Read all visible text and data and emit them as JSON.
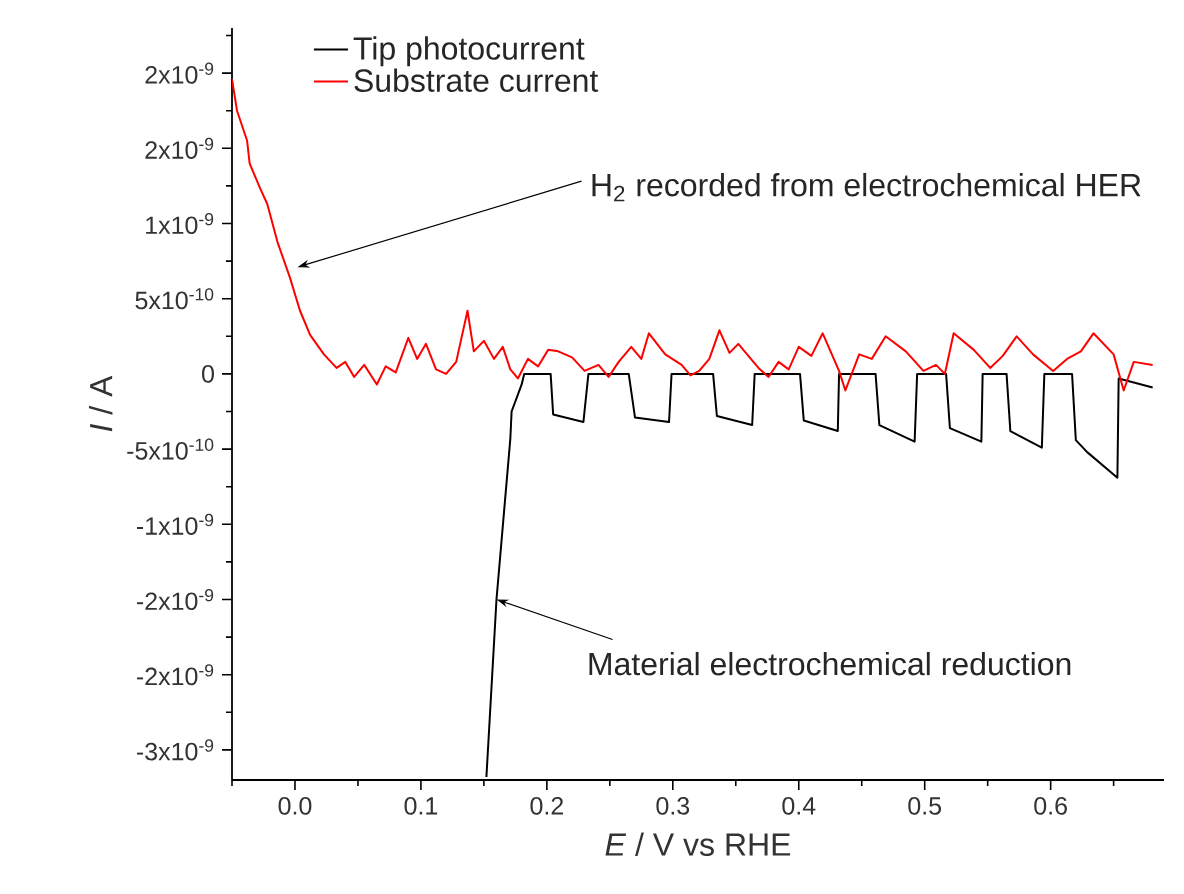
{
  "chart_data": {
    "type": "line",
    "xlabel": "*E* / V vs RHE",
    "ylabel": "*I* / A",
    "xlim": [
      -0.05,
      0.69
    ],
    "ylim": [
      -2.7e-09,
      2.3e-09
    ],
    "xticks": [
      {
        "value": -0.05,
        "label": null
      },
      {
        "value": 0.0,
        "label": "0.0"
      },
      {
        "value": 0.05,
        "label": null
      },
      {
        "value": 0.1,
        "label": "0.1"
      },
      {
        "value": 0.15,
        "label": null
      },
      {
        "value": 0.2,
        "label": "0.2"
      },
      {
        "value": 0.25,
        "label": null
      },
      {
        "value": 0.3,
        "label": "0.3"
      },
      {
        "value": 0.35,
        "label": null
      },
      {
        "value": 0.4,
        "label": "0.4"
      },
      {
        "value": 0.45,
        "label": null
      },
      {
        "value": 0.5,
        "label": "0.5"
      },
      {
        "value": 0.55,
        "label": null
      },
      {
        "value": 0.6,
        "label": "0.6"
      },
      {
        "value": 0.65,
        "label": null
      }
    ],
    "yticks": [
      {
        "value": 2.25e-09,
        "label": null
      },
      {
        "value": 2e-09,
        "label": "2x10$^{-9}$"
      },
      {
        "value": 1.75e-09,
        "label": null
      },
      {
        "value": 1.5e-09,
        "label": "2x10$^{-9}$"
      },
      {
        "value": 1.25e-09,
        "label": null
      },
      {
        "value": 1e-09,
        "label": "1x10$^{-9}$"
      },
      {
        "value": 7.5e-10,
        "label": null
      },
      {
        "value": 5e-10,
        "label": "5x10$^{-10}$"
      },
      {
        "value": 2.5e-10,
        "label": null
      },
      {
        "value": 0,
        "label": "0"
      },
      {
        "value": -2.5e-10,
        "label": null
      },
      {
        "value": -5e-10,
        "label": "-5x10$^{-10}$"
      },
      {
        "value": -7.5e-10,
        "label": null
      },
      {
        "value": -1e-09,
        "label": "-1x10$^{-9}$"
      },
      {
        "value": -1.25e-09,
        "label": null
      },
      {
        "value": -1.5e-09,
        "label": "-2x10$^{-9}$"
      },
      {
        "value": -1.75e-09,
        "label": null
      },
      {
        "value": -2e-09,
        "label": "-2x10$^{-9}$"
      },
      {
        "value": -2.25e-09,
        "label": null
      },
      {
        "value": -2.5e-09,
        "label": "-3x10$^{-9}$"
      }
    ],
    "legend": "top left",
    "series": [
      {
        "name": "Tip photocurrent",
        "color": "#000000",
        "x": [
          0.152,
          0.16,
          0.171,
          0.172,
          0.18,
          0.182,
          0.203,
          0.205,
          0.229,
          0.233,
          0.265,
          0.27,
          0.297,
          0.299,
          0.332,
          0.335,
          0.363,
          0.365,
          0.401,
          0.404,
          0.431,
          0.432,
          0.461,
          0.464,
          0.492,
          0.494,
          0.517,
          0.52,
          0.545,
          0.546,
          0.565,
          0.568,
          0.593,
          0.595,
          0.617,
          0.62,
          0.629,
          0.653,
          0.654,
          0.681
        ],
        "values": [
          -2.68e-09,
          -1.5e-09,
          -4.3e-10,
          -2.5e-10,
          -7e-11,
          0,
          0,
          -2.7e-10,
          -3.2e-10,
          0,
          0,
          -2.9e-10,
          -3.2e-10,
          0,
          0,
          -2.8e-10,
          -3.4e-10,
          0,
          0,
          -3.1e-10,
          -3.8e-10,
          0,
          0,
          -3.4e-10,
          -4.5e-10,
          0,
          0,
          -3.6e-10,
          -4.5e-10,
          0,
          0,
          -3.8e-10,
          -4.9e-10,
          0,
          0,
          -4.4e-10,
          -5.2e-10,
          -6.9e-10,
          -3e-11,
          -9e-11
        ]
      },
      {
        "name": "Substrate current",
        "color": "#ff0000",
        "x": [
          -0.05,
          -0.046,
          -0.038,
          -0.036,
          -0.028,
          -0.022,
          -0.014,
          -0.004,
          0.004,
          0.012,
          0.023,
          0.033,
          0.04,
          0.047,
          0.055,
          0.065,
          0.072,
          0.08,
          0.09,
          0.097,
          0.104,
          0.112,
          0.12,
          0.128,
          0.137,
          0.142,
          0.15,
          0.158,
          0.165,
          0.171,
          0.177,
          0.185,
          0.193,
          0.201,
          0.209,
          0.22,
          0.23,
          0.241,
          0.249,
          0.257,
          0.267,
          0.275,
          0.281,
          0.294,
          0.307,
          0.314,
          0.321,
          0.329,
          0.337,
          0.345,
          0.352,
          0.368,
          0.376,
          0.384,
          0.392,
          0.4,
          0.41,
          0.419,
          0.432,
          0.437,
          0.448,
          0.458,
          0.469,
          0.485,
          0.499,
          0.509,
          0.516,
          0.523,
          0.539,
          0.552,
          0.562,
          0.573,
          0.586,
          0.602,
          0.613,
          0.624,
          0.634,
          0.65,
          0.658,
          0.666,
          0.681
        ],
        "values": [
          1.96e-09,
          1.75e-09,
          1.55e-09,
          1.4e-09,
          1.24e-09,
          1.13e-09,
          8.8e-10,
          6.4e-10,
          4.2e-10,
          2.6e-10,
          1.3e-10,
          4e-11,
          8e-11,
          -2e-11,
          6e-11,
          -7e-11,
          5e-11,
          1e-11,
          2.4e-10,
          1e-10,
          2e-10,
          3e-11,
          0,
          8e-11,
          4.2e-10,
          1.5e-10,
          2.2e-10,
          1e-10,
          1.8e-10,
          3e-11,
          -3e-11,
          1e-10,
          5e-11,
          1.6e-10,
          1.5e-10,
          1.1e-10,
          2e-11,
          6e-11,
          -2e-11,
          8e-11,
          1.8e-10,
          1e-10,
          2.7e-10,
          1.3e-10,
          6e-11,
          -1e-11,
          2e-11,
          1e-10,
          2.9e-10,
          1.4e-10,
          2e-10,
          4e-11,
          -2e-11,
          8e-11,
          3e-11,
          1.8e-10,
          1.2e-10,
          2.7e-10,
          2e-11,
          -1.1e-10,
          1.3e-10,
          1e-10,
          2.5e-10,
          1.5e-10,
          2e-11,
          6e-11,
          0,
          2.7e-10,
          1.6e-10,
          4e-11,
          1.2e-10,
          2.5e-10,
          1.3e-10,
          2e-11,
          1e-10,
          1.5e-10,
          2.7e-10,
          1.3e-10,
          -1.1e-10,
          8e-11,
          6e-11
        ]
      }
    ],
    "annotations": [
      {
        "text": "H$_{2}$ recorded from electrochemical HER",
        "x": 0.002,
        "y": 7.1e-10
      },
      {
        "text": "Material electrochemical reduction",
        "x": 0.16,
        "y": -1.5e-09
      }
    ]
  }
}
